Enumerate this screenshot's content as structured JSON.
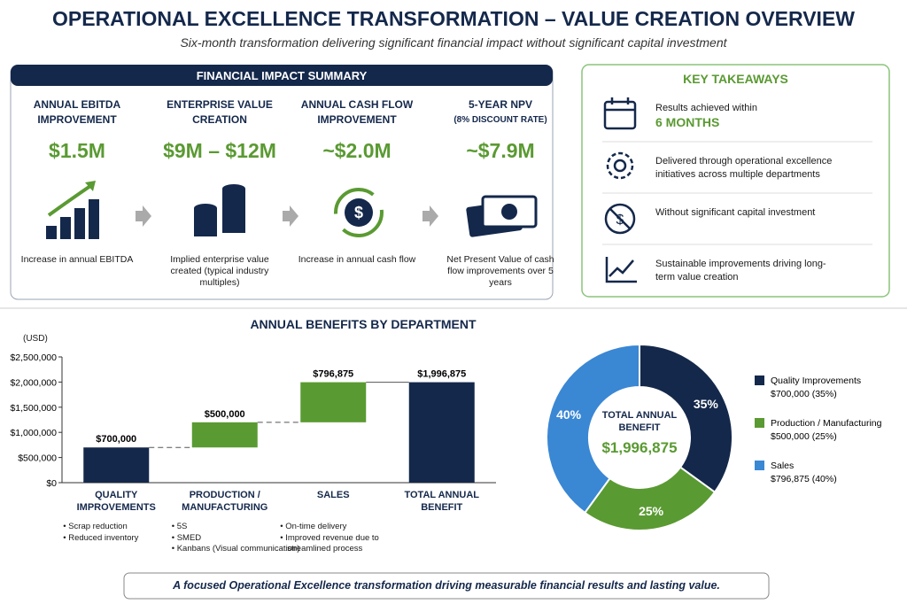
{
  "header": {
    "title": "OPERATIONAL EXCELLENCE TRANSFORMATION – VALUE CREATION OVERVIEW",
    "subtitle": "Six-month transformation delivering significant financial impact without significant capital investment"
  },
  "impact": {
    "title": "FINANCIAL IMPACT SUMMARY",
    "items": [
      {
        "title": "ANNUAL EBITDA IMPROVEMENT",
        "value": "$1.5M",
        "description": "Increase in annual EBITDA"
      },
      {
        "title": "ENTERPRISE VALUE CREATION",
        "value": "$9M – $12M",
        "description": "Implied enterprise value created (typical industry multiples)"
      },
      {
        "title": "ANNUAL CASH FLOW IMPROVEMENT",
        "value": "~$2.0M",
        "description": "Increase in annual cash flow"
      },
      {
        "title": "5-YEAR NPV",
        "note": "(8% DISCOUNT RATE)",
        "value": "~$7.9M",
        "description": "Net Present Value of cash flow improvements over 5 years"
      }
    ]
  },
  "takeaways": {
    "title": "KEY TAKEAWAYS",
    "items": [
      {
        "text": "Results achieved within",
        "highlight": "6 MONTHS"
      },
      {
        "text": "Delivered through operational excellence initiatives across multiple departments"
      },
      {
        "text": "Without significant capital investment"
      },
      {
        "text": "Sustainable improvements driving long-term value creation"
      }
    ]
  },
  "chart_data": [
    {
      "type": "waterfall",
      "title": "ANNUAL BENEFITS BY DEPARTMENT",
      "y_label": "(USD)",
      "categories": [
        "QUALITY IMPROVEMENTS",
        "PRODUCTION / MANUFACTURING",
        "SALES",
        "TOTAL ANNUAL BENEFIT"
      ],
      "values": [
        700000,
        500000,
        796875,
        1996875
      ],
      "value_labels": [
        "$700,000",
        "$500,000",
        "$796,875",
        "$1,996,875"
      ],
      "colors": [
        "#14284b",
        "#5a9a32",
        "#5a9a32",
        "#14284b"
      ],
      "notes": [
        [
          "Scrap reduction",
          "Reduced inventory"
        ],
        [
          "5S",
          "SMED",
          "Kanbans (Visual communication)"
        ],
        [
          "On-time delivery",
          "Improved revenue due to streamlined process"
        ]
      ],
      "ylim": [
        0,
        2500000
      ],
      "yticks": [
        {
          "value": 0,
          "label": "$0"
        },
        {
          "value": 500000,
          "label": "$500,000"
        },
        {
          "value": 1000000,
          "label": "$1,000,000"
        },
        {
          "value": 1500000,
          "label": "$1,500,000"
        },
        {
          "value": 2000000,
          "label": "$2,000,000"
        },
        {
          "value": 2500000,
          "label": "$2,500,000"
        }
      ]
    },
    {
      "type": "pie",
      "center_title": "TOTAL ANNUAL BENEFIT",
      "center_value": "$1,996,875",
      "categories": [
        "Quality Improvements",
        "Production / Manufacturing",
        "Sales"
      ],
      "values": [
        35,
        25,
        40
      ],
      "value_labels": [
        "35%",
        "25%",
        "40%"
      ],
      "legend_details": [
        "$700,000 (35%)",
        "$500,000 (25%)",
        "$796,875 (40%)"
      ],
      "colors": [
        "#14284b",
        "#5a9a32",
        "#3a87d4"
      ]
    }
  ],
  "footer": "A focused Operational Excellence transformation driving measurable financial results and lasting value."
}
